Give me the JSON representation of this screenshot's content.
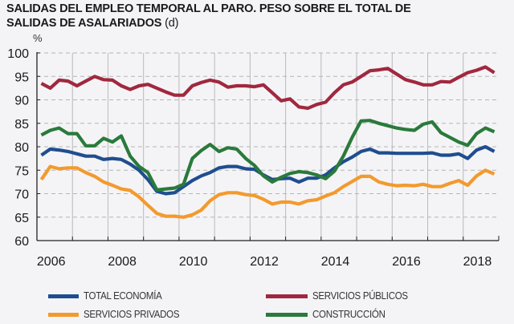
{
  "chart_data": {
    "type": "line",
    "title": "SALIDAS DEL EMPLEO TEMPORAL AL PARO. PESO SOBRE EL TOTAL DE SALIDAS DE ASALARIADOS",
    "title_suffix": "(d)",
    "title_line1": "SALIDAS DEL EMPLEO TEMPORAL AL PARO. PESO SOBRE EL TOTAL DE",
    "title_line2": "SALIDAS DE ASALARIADOS",
    "ylabel": "%",
    "xlabel": "",
    "ylim": [
      60,
      100
    ],
    "yticks": [
      60,
      65,
      70,
      75,
      80,
      85,
      90,
      95,
      100
    ],
    "xlim": [
      2006,
      2019
    ],
    "xticks_labels": [
      "2006",
      "2008",
      "2010",
      "2012",
      "2014",
      "2016",
      "2018"
    ],
    "grid": {
      "horizontal": "dashed",
      "vertical": "solid-yearly"
    },
    "legend_position": "bottom",
    "x_frequency": "quarterly",
    "x_start": "2006Q1",
    "x_end": "2018Q4",
    "series": [
      {
        "name": "TOTAL ECONOMÍA",
        "color": "#1f4e8f",
        "values": [
          78.2,
          79.5,
          79.3,
          79.0,
          78.5,
          78.0,
          78.0,
          77.3,
          77.5,
          77.3,
          76.3,
          75.0,
          73.0,
          70.5,
          70.0,
          70.2,
          71.5,
          72.8,
          73.8,
          74.5,
          75.5,
          75.8,
          75.8,
          75.3,
          75.2,
          74.0,
          73.0,
          73.2,
          73.3,
          72.5,
          73.3,
          73.3,
          74.0,
          75.5,
          76.8,
          77.8,
          79.0,
          79.5,
          78.7,
          78.7,
          78.6,
          78.6,
          78.6,
          78.6,
          78.7,
          78.2,
          78.2,
          78.5,
          77.5,
          79.3,
          80.0,
          79.0
        ]
      },
      {
        "name": "SERVICIOS PRIVADOS",
        "color": "#f39a2d",
        "values": [
          73.0,
          75.8,
          75.3,
          75.5,
          75.5,
          74.5,
          73.7,
          72.5,
          71.8,
          71.0,
          70.7,
          69.3,
          67.5,
          65.8,
          65.2,
          65.2,
          65.0,
          65.5,
          66.5,
          68.5,
          69.8,
          70.2,
          70.2,
          69.8,
          69.6,
          68.8,
          67.8,
          68.2,
          68.2,
          67.8,
          68.5,
          68.7,
          69.5,
          70.2,
          71.5,
          72.6,
          73.7,
          73.7,
          72.5,
          72.0,
          71.7,
          71.8,
          71.7,
          72.0,
          71.5,
          71.5,
          72.2,
          72.8,
          71.8,
          73.8,
          75.0,
          74.2
        ]
      },
      {
        "name": "SERVICIOS PÚBLICOS",
        "color": "#a0283f",
        "values": [
          93.5,
          92.5,
          94.2,
          94.0,
          93.0,
          94.0,
          95.0,
          94.3,
          94.2,
          93.0,
          92.2,
          93.0,
          93.3,
          92.5,
          91.7,
          91.0,
          91.0,
          93.0,
          93.7,
          94.2,
          93.8,
          92.7,
          93.0,
          93.0,
          92.8,
          93.2,
          91.5,
          89.8,
          90.2,
          88.5,
          88.2,
          89.0,
          89.5,
          91.5,
          93.2,
          93.8,
          95.0,
          96.2,
          96.4,
          96.7,
          95.5,
          94.3,
          93.8,
          93.2,
          93.2,
          93.9,
          93.8,
          94.8,
          95.8,
          96.3,
          97.0,
          95.8
        ]
      },
      {
        "name": "CONSTRUCCIÓN",
        "color": "#2a7a3b",
        "values": [
          82.5,
          83.5,
          84.0,
          82.8,
          82.8,
          80.2,
          80.2,
          81.8,
          81.0,
          82.3,
          78.0,
          75.8,
          74.5,
          70.8,
          71.0,
          71.2,
          72.0,
          77.5,
          79.2,
          80.5,
          79.0,
          79.8,
          79.5,
          77.5,
          76.0,
          73.8,
          72.5,
          73.5,
          74.3,
          74.7,
          74.5,
          74.0,
          73.2,
          74.8,
          78.0,
          82.0,
          85.5,
          85.6,
          85.0,
          84.5,
          84.0,
          83.7,
          83.5,
          84.8,
          85.3,
          83.0,
          82.0,
          81.0,
          80.3,
          82.8,
          84.0,
          83.2
        ]
      }
    ]
  },
  "legend": {
    "items": [
      {
        "label": "TOTAL ECONOMÍA",
        "color": "#1f4e8f"
      },
      {
        "label": "SERVICIOS PÚBLICOS",
        "color": "#a0283f"
      },
      {
        "label": "SERVICIOS PRIVADOS",
        "color": "#f39a2d"
      },
      {
        "label": "CONSTRUCCIÓN",
        "color": "#2a7a3b"
      }
    ]
  }
}
